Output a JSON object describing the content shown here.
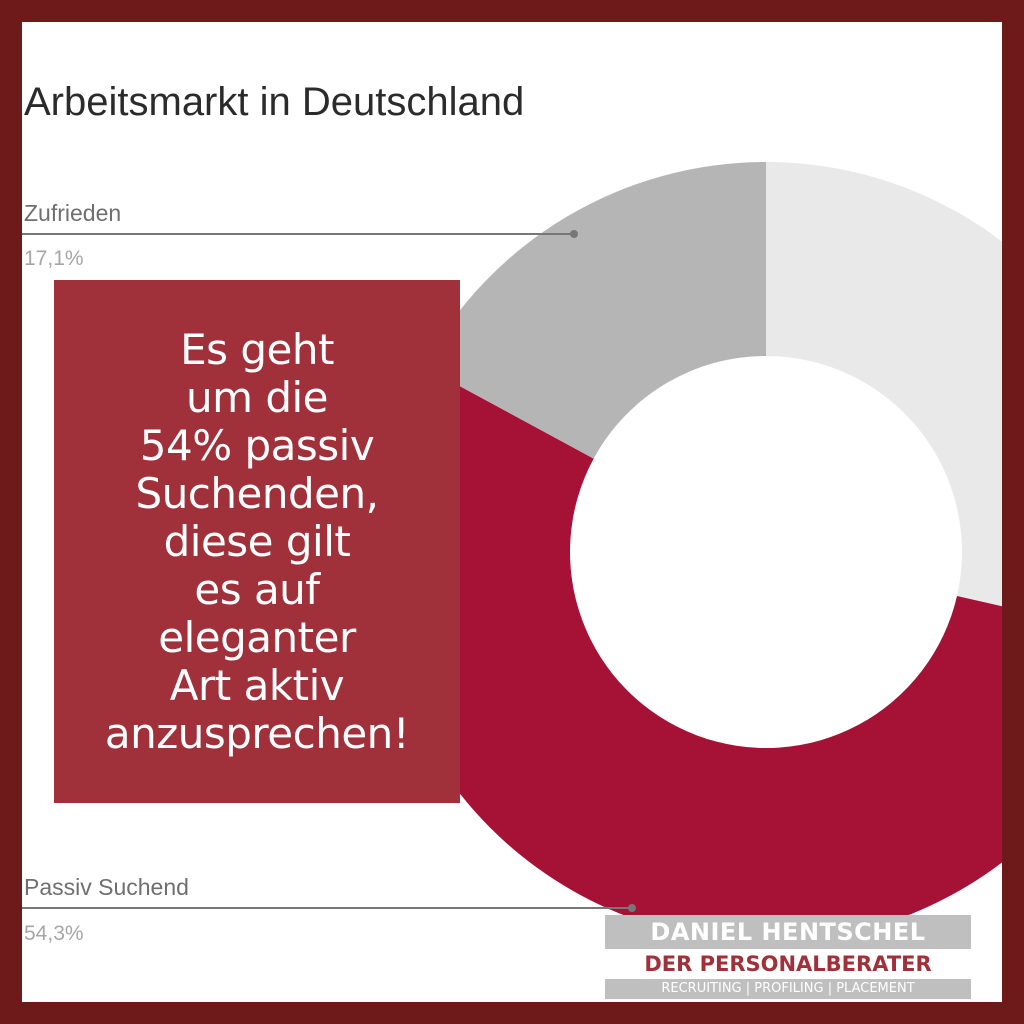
{
  "chart_data": {
    "type": "pie",
    "title": "Arbeitsmarkt in Deutschland",
    "series": [
      {
        "name": "Passiv Suchend",
        "label": "Passiv Suchend",
        "percent_label": "54,3%",
        "value": 54.3,
        "color": "#a51236"
      },
      {
        "name": "Zufrieden",
        "label": "Zufrieden",
        "percent_label": "17,1%",
        "value": 17.1,
        "color": "#b5b5b5"
      },
      {
        "name": "",
        "label": "",
        "percent_label": "",
        "value": 28.6,
        "color": "#e9e9e9"
      }
    ],
    "donut": true
  },
  "overlay": {
    "lines": [
      "Es geht",
      "um die",
      "54% passiv",
      "Suchenden,",
      "diese gilt",
      "es auf",
      "eleganter",
      "Art aktiv",
      "anzusprechen!"
    ],
    "background": "#a0313b"
  },
  "brand": {
    "name": "DANIEL HENTSCHEL",
    "subtitle": "DER PERSONALBERATER",
    "tagline": "RECRUITING | PROFILING | PLACEMENT"
  },
  "colors": {
    "border": "#6e1a1b",
    "accent": "#a0313b"
  }
}
